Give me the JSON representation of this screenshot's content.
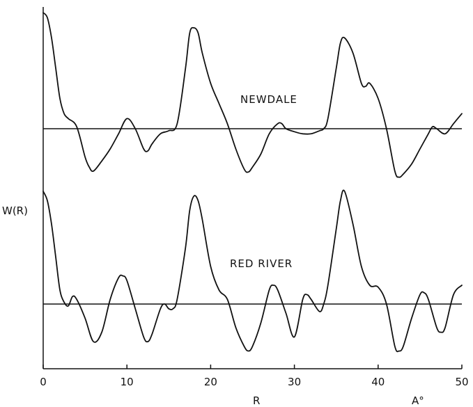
{
  "chart_data": {
    "type": "line",
    "title": "",
    "xlabel": "R",
    "x_unit": "A°",
    "ylabel": "W(R)",
    "xlim": [
      0,
      50
    ],
    "x_ticks": [
      "0",
      "10",
      "20",
      "30",
      "40",
      "50"
    ],
    "grid": false,
    "legend": "none",
    "panels": [
      {
        "name": "NEWDALE",
        "baseline": 0,
        "x": [
          0,
          0.5,
          1,
          1.5,
          2,
          2.5,
          3,
          4,
          5,
          5.5,
          6,
          7,
          8,
          9,
          10,
          11,
          12,
          12.5,
          13,
          14,
          15,
          16,
          17,
          17.5,
          18,
          18.5,
          19,
          20,
          21,
          22,
          23,
          24,
          24.5,
          25,
          26,
          27,
          28,
          28.5,
          29,
          30,
          31,
          32,
          33,
          33.5,
          34,
          35,
          35.5,
          36,
          37,
          38,
          38.5,
          39,
          40,
          41,
          42,
          42.5,
          43,
          44,
          45,
          46,
          46.5,
          47,
          48,
          49,
          50
        ],
        "values": [
          1.15,
          1.1,
          0.9,
          0.6,
          0.3,
          0.15,
          0.1,
          0.02,
          -0.28,
          -0.38,
          -0.42,
          -0.32,
          -0.2,
          -0.05,
          0.1,
          0.0,
          -0.2,
          -0.22,
          -0.15,
          -0.05,
          -0.02,
          0.05,
          0.6,
          0.95,
          1.0,
          0.95,
          0.75,
          0.45,
          0.25,
          0.05,
          -0.2,
          -0.4,
          -0.43,
          -0.38,
          -0.25,
          -0.05,
          0.05,
          0.05,
          0.0,
          -0.03,
          -0.05,
          -0.05,
          -0.02,
          0.0,
          0.1,
          0.6,
          0.85,
          0.9,
          0.75,
          0.45,
          0.42,
          0.45,
          0.3,
          0.0,
          -0.42,
          -0.48,
          -0.45,
          -0.35,
          -0.2,
          -0.05,
          0.02,
          0.0,
          -0.05,
          0.05,
          0.15
        ]
      },
      {
        "name": "RED RIVER",
        "baseline": 0,
        "x": [
          0,
          0.5,
          1,
          1.5,
          2,
          2.5,
          3,
          3.5,
          4,
          5,
          6,
          7,
          8,
          9,
          9.5,
          10,
          11,
          12,
          12.5,
          13,
          14,
          14.5,
          15,
          15.5,
          16,
          17,
          17.5,
          18,
          18.5,
          19,
          20,
          21,
          22,
          23,
          24,
          24.5,
          25,
          26,
          27,
          27.5,
          28,
          29,
          30,
          31,
          31.5,
          32,
          33,
          33.5,
          34,
          35,
          35.5,
          36,
          37,
          38,
          39,
          40,
          41,
          42,
          42.5,
          43,
          44,
          45,
          45.5,
          46,
          47,
          47.5,
          48,
          49,
          50
        ],
        "values": [
          1.2,
          1.1,
          0.85,
          0.5,
          0.15,
          0.02,
          -0.02,
          0.08,
          0.05,
          -0.15,
          -0.4,
          -0.3,
          0.05,
          0.28,
          0.3,
          0.25,
          -0.05,
          -0.35,
          -0.4,
          -0.32,
          -0.05,
          0.0,
          -0.05,
          -0.05,
          0.05,
          0.6,
          1.0,
          1.15,
          1.1,
          0.9,
          0.4,
          0.15,
          0.05,
          -0.25,
          -0.45,
          -0.5,
          -0.45,
          -0.2,
          0.15,
          0.2,
          0.15,
          -0.1,
          -0.35,
          0.05,
          0.1,
          0.05,
          -0.08,
          0.0,
          0.2,
          0.8,
          1.1,
          1.2,
          0.85,
          0.4,
          0.2,
          0.18,
          0.0,
          -0.45,
          -0.5,
          -0.45,
          -0.15,
          0.1,
          0.12,
          0.05,
          -0.25,
          -0.3,
          -0.25,
          0.1,
          0.2
        ]
      }
    ]
  }
}
